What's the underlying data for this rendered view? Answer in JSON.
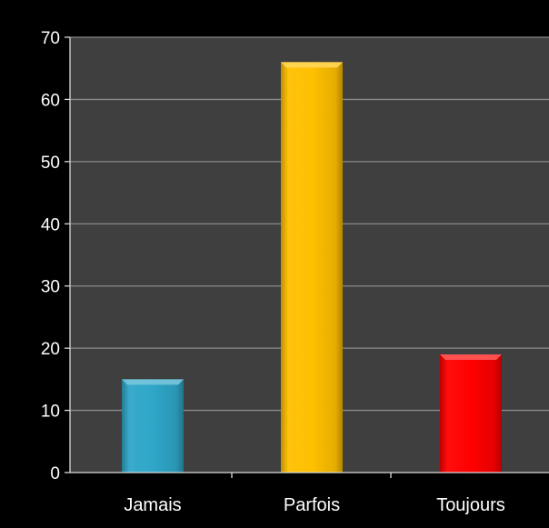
{
  "chart_data": {
    "type": "bar",
    "title": "",
    "xlabel": "",
    "ylabel": "",
    "categories": [
      "Jamais",
      "Parfois",
      "Toujours"
    ],
    "values": [
      15,
      66,
      19
    ],
    "ylim": [
      0,
      70
    ],
    "yticks": [
      0,
      10,
      20,
      30,
      40,
      50,
      60,
      70
    ],
    "grid": true,
    "legend": "none",
    "colors": {
      "background": "#000000",
      "plot_area": "#3f3f3f",
      "gridline": "#8a8a8a",
      "axis": "#d9d9d9",
      "text": "#ffffff",
      "bars": [
        "#2fa6c8",
        "#ffc000",
        "#ff0000"
      ]
    }
  }
}
